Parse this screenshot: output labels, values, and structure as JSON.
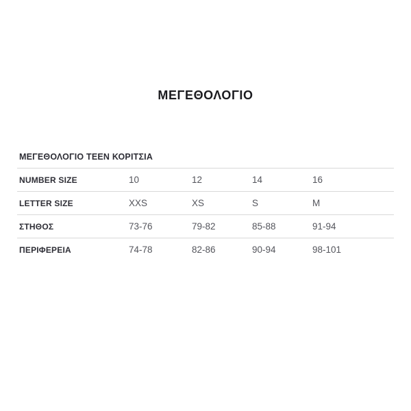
{
  "page": {
    "title": "ΜΕΓΕΘΟΛΟΓΙΟ"
  },
  "size_chart": {
    "section_title": "ΜΕΓΕΘΟΛΟΓΙΟ TEEN ΚΟΡΙΤΣΙΑ",
    "rows": [
      {
        "label": "NUMBER SIZE",
        "values": [
          "10",
          "12",
          "14",
          "16"
        ]
      },
      {
        "label": "LETTER SIZE",
        "values": [
          "XXS",
          "XS",
          "S",
          "M"
        ]
      },
      {
        "label": "ΣΤΗΘΟΣ",
        "values": [
          "73-76",
          "79-82",
          "85-88",
          "91-94"
        ]
      },
      {
        "label": "ΠΕΡΙΦΕΡΕΙΑ",
        "values": [
          "74-78",
          "82-86",
          "90-94",
          "98-101"
        ]
      }
    ]
  },
  "colors": {
    "background": "#ffffff",
    "title_text": "#1b1b1f",
    "label_text": "#2e2e36",
    "value_text": "#54555c",
    "divider": "#d8d8d8"
  }
}
